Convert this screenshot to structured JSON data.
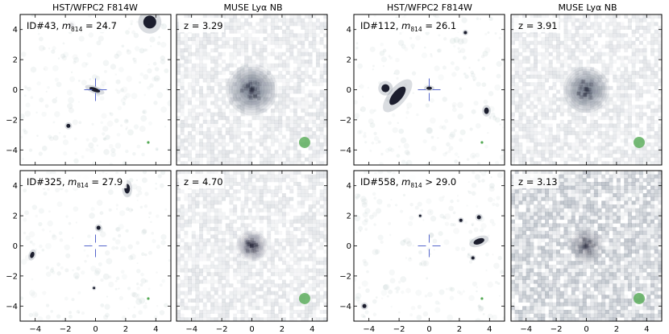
{
  "columns": [
    {
      "title": "HST/WFPC2 F814W"
    },
    {
      "title": "MUSE Lyα NB"
    },
    {
      "title": "HST/WFPC2 F814W"
    },
    {
      "title": "MUSE Lyα NB"
    }
  ],
  "tick_values": [
    -4,
    -2,
    0,
    2,
    4
  ],
  "tick_labels": [
    "−4",
    "−2",
    "0",
    "2",
    "4"
  ],
  "axis_range": [
    -5,
    5
  ],
  "colors": {
    "background": "#e8eeec",
    "source": "#1c1e2e",
    "crosshair": "#5566cc",
    "psf_marker": "#55aa55"
  },
  "panels": [
    {
      "id_text": "ID#43,",
      "m_text": "m",
      "m_sub": "814",
      "rel_text": " = 24.7",
      "kind": "hst",
      "seed": 11
    },
    {
      "z_text": "z = 3.29",
      "kind": "muse",
      "seed": 21,
      "core": 1.0,
      "halo": 1.0,
      "noise": 0.15
    },
    {
      "id_text": "ID#112,",
      "m_text": "m",
      "m_sub": "814",
      "rel_text": " = 26.1",
      "kind": "hst",
      "seed": 31
    },
    {
      "z_text": "z = 3.91",
      "kind": "muse",
      "seed": 41,
      "core": 1.0,
      "halo": 0.9,
      "noise": 0.15
    },
    {
      "id_text": "ID#325,",
      "m_text": "m",
      "m_sub": "814",
      "rel_text": " = 27.9",
      "kind": "hst",
      "seed": 51
    },
    {
      "z_text": "z = 4.70",
      "kind": "muse",
      "seed": 61,
      "core": 0.9,
      "halo": 0.6,
      "noise": 0.15
    },
    {
      "id_text": "ID#558,",
      "m_text": "m",
      "m_sub": "814",
      "rel_text": " > 29.0",
      "kind": "hst",
      "seed": 71
    },
    {
      "z_text": "z = 3.13",
      "kind": "muse",
      "seed": 81,
      "core": 0.6,
      "halo": 0.7,
      "noise": 0.32
    }
  ]
}
